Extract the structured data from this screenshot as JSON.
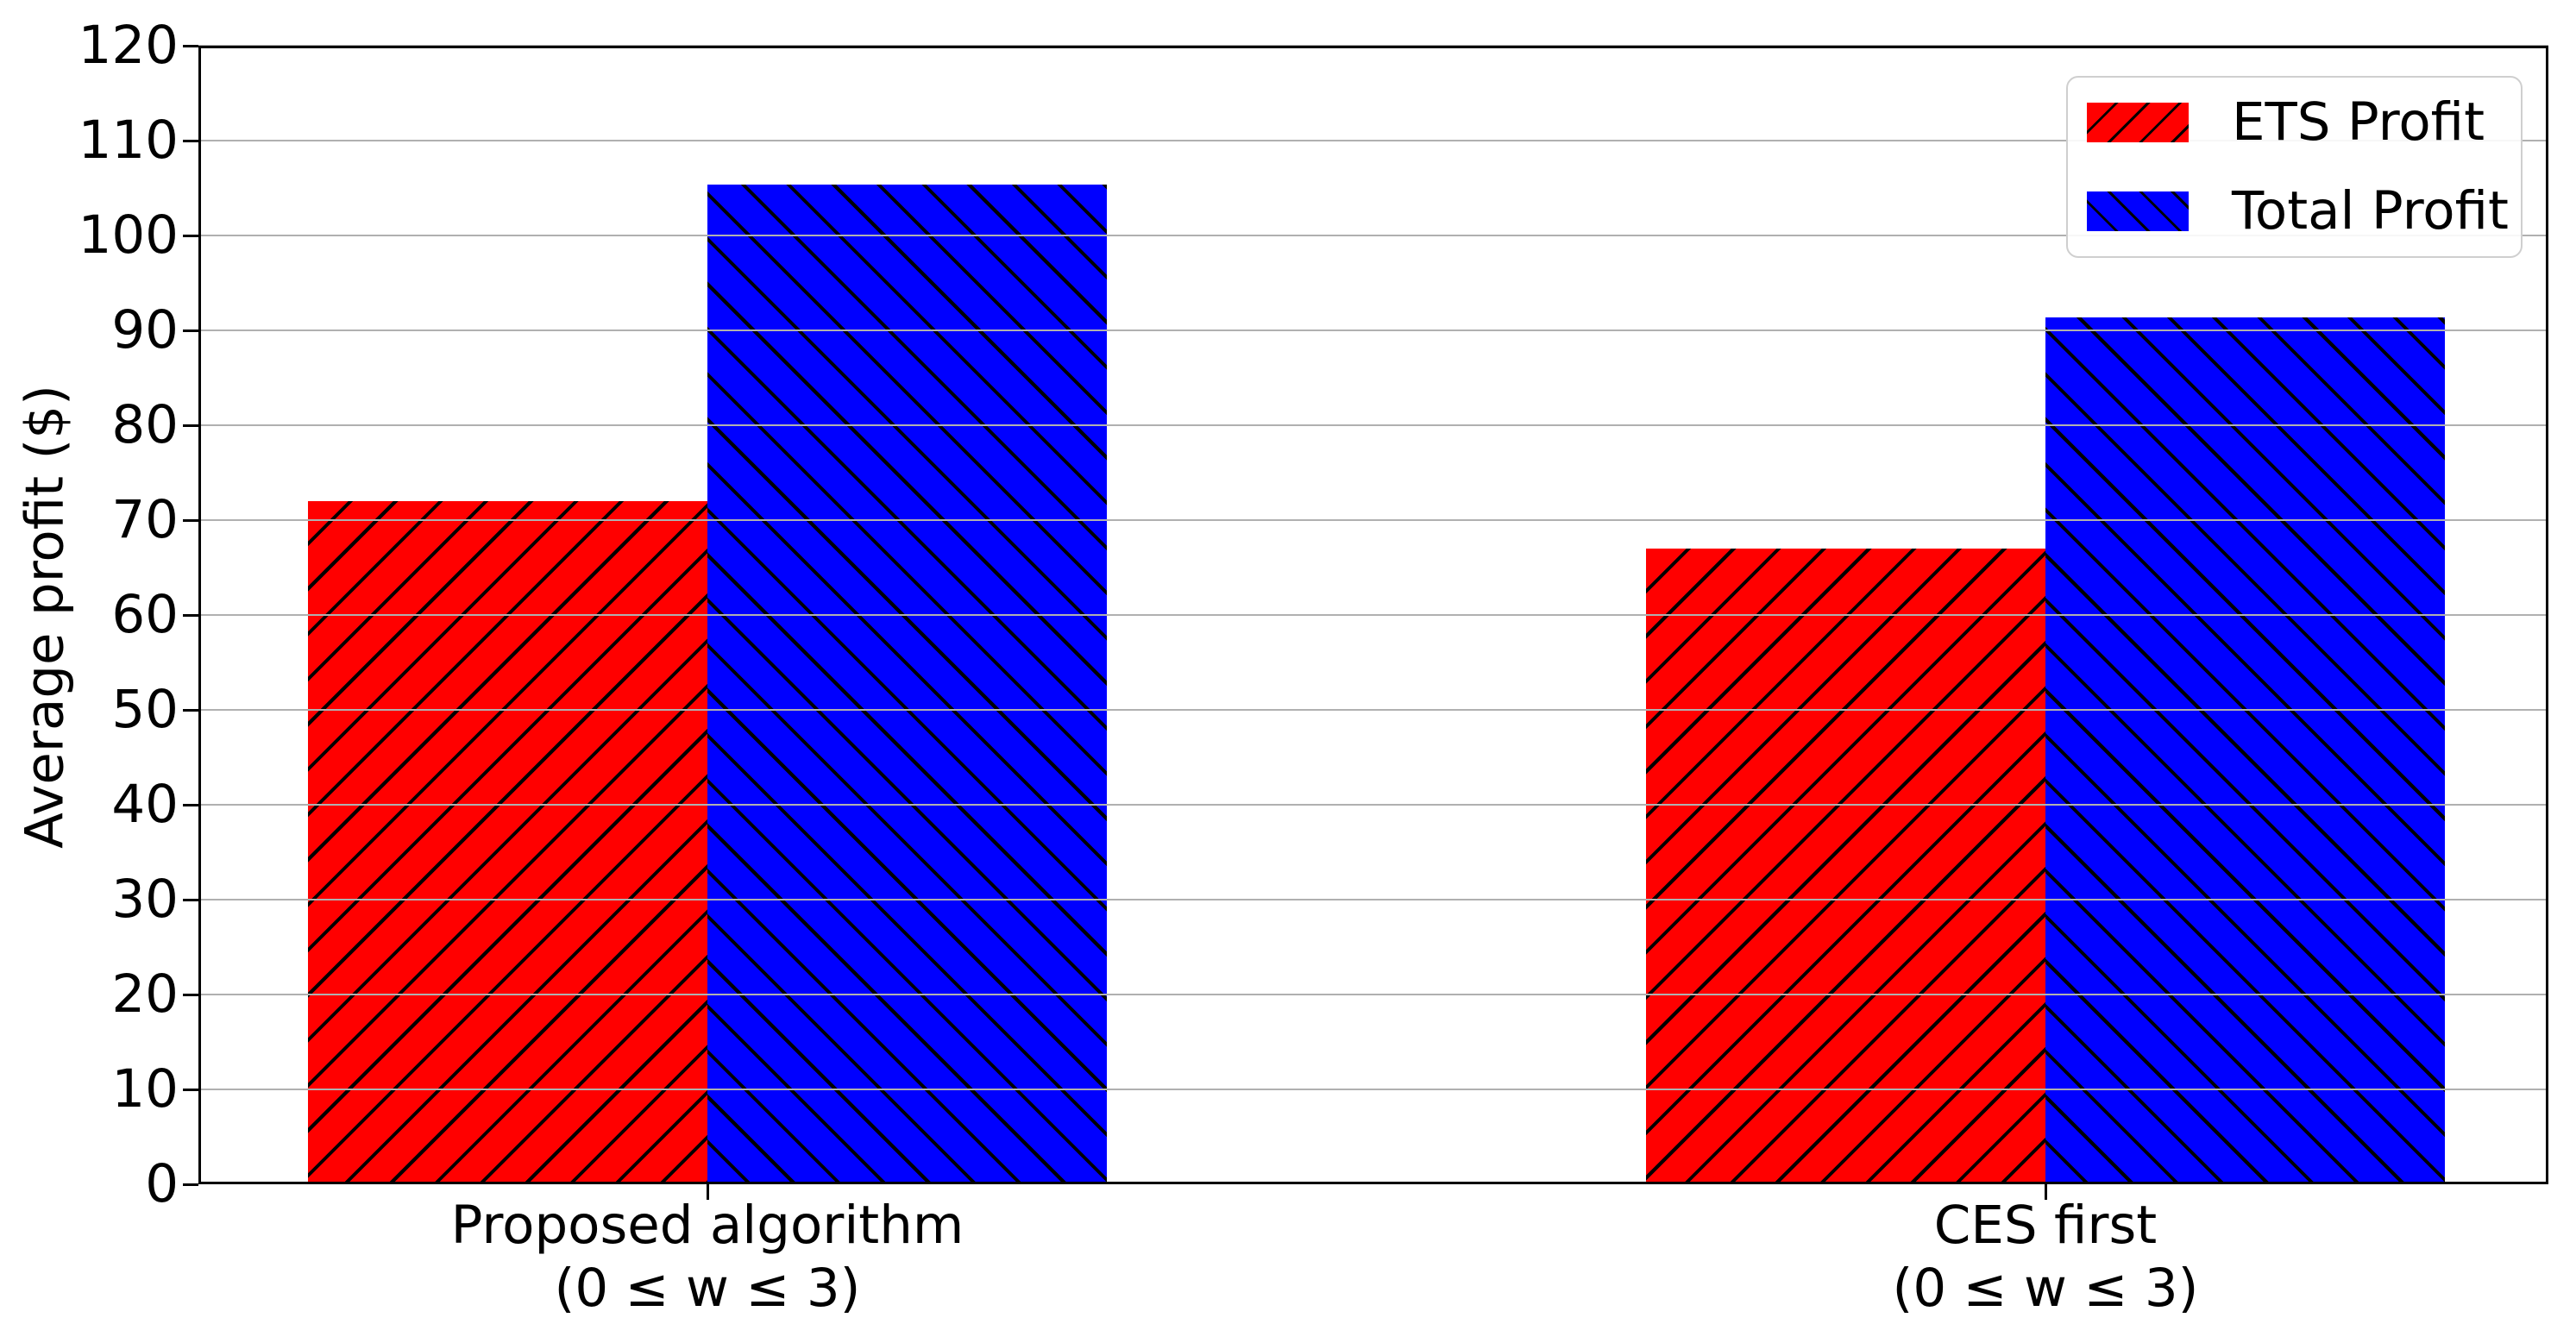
{
  "chart_data": {
    "type": "bar",
    "title": "",
    "ylabel": "Average profit ($)",
    "xlabel": "",
    "ylim": [
      0,
      120
    ],
    "yticks": [
      0,
      10,
      20,
      30,
      40,
      50,
      60,
      70,
      80,
      90,
      100,
      110,
      120
    ],
    "grid": "horizontal, drawn above bars",
    "legend_position": "upper right",
    "categories": [
      {
        "label": "Proposed algorithm",
        "sublabel": "(0 ≤ w ≤ 3)"
      },
      {
        "label": "CES first",
        "sublabel": "(0 ≤ w ≤ 3)"
      }
    ],
    "series": [
      {
        "name": "ETS Profit",
        "color": "#ff0000",
        "hatch": "/",
        "values": [
          72,
          67
        ]
      },
      {
        "name": "Total Profit",
        "color": "#0000ff",
        "hatch": "\\",
        "values": [
          105.4,
          91.4
        ]
      }
    ],
    "colors": {
      "grid": "#b0b0b0",
      "axis": "#000000",
      "hatch": "#000000",
      "background": "#ffffff",
      "legend_border": "#cfcfcf"
    }
  }
}
